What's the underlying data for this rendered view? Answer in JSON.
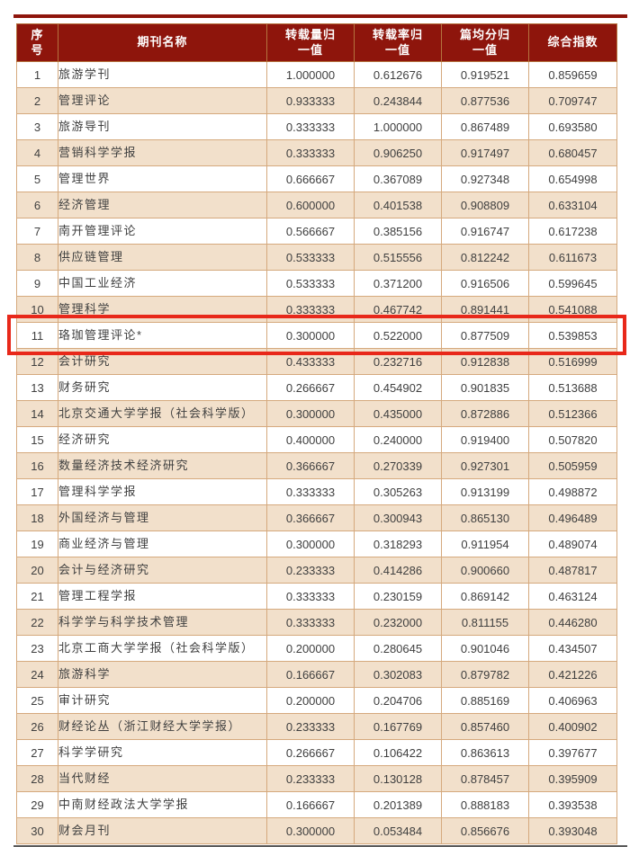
{
  "colors": {
    "header_bg": "#8e150c",
    "header_border": "#b5733f",
    "body_border": "#d5a97d",
    "stripe_bg": "#f2e0cb",
    "text_color": "#3f3f3f",
    "highlight": "#e8281a",
    "rule_bottom": "#5a5a5a"
  },
  "table": {
    "columns": [
      {
        "key": "rank",
        "label": "序\n号"
      },
      {
        "key": "name",
        "label": "期刊名称"
      },
      {
        "key": "reprint_volume_norm",
        "label": "转载量归\n一值"
      },
      {
        "key": "reprint_rate_norm",
        "label": "转载率归\n一值"
      },
      {
        "key": "avg_score_norm",
        "label": "篇均分归\n一值"
      },
      {
        "key": "composite_index",
        "label": "综合指数"
      }
    ],
    "highlighted_rank": "11",
    "rows": [
      [
        "1",
        "旅游学刊",
        "1.000000",
        "0.612676",
        "0.919521",
        "0.859659"
      ],
      [
        "2",
        "管理评论",
        "0.933333",
        "0.243844",
        "0.877536",
        "0.709747"
      ],
      [
        "3",
        "旅游导刊",
        "0.333333",
        "1.000000",
        "0.867489",
        "0.693580"
      ],
      [
        "4",
        "营销科学学报",
        "0.333333",
        "0.906250",
        "0.917497",
        "0.680457"
      ],
      [
        "5",
        "管理世界",
        "0.666667",
        "0.367089",
        "0.927348",
        "0.654998"
      ],
      [
        "6",
        "经济管理",
        "0.600000",
        "0.401538",
        "0.908809",
        "0.633104"
      ],
      [
        "7",
        "南开管理评论",
        "0.566667",
        "0.385156",
        "0.916747",
        "0.617238"
      ],
      [
        "8",
        "供应链管理",
        "0.533333",
        "0.515556",
        "0.812242",
        "0.611673"
      ],
      [
        "9",
        "中国工业经济",
        "0.533333",
        "0.371200",
        "0.916506",
        "0.599645"
      ],
      [
        "10",
        "管理科学",
        "0.333333",
        "0.467742",
        "0.891441",
        "0.541088"
      ],
      [
        "11",
        "珞珈管理评论*",
        "0.300000",
        "0.522000",
        "0.877509",
        "0.539853"
      ],
      [
        "12",
        "会计研究",
        "0.433333",
        "0.232716",
        "0.912838",
        "0.516999"
      ],
      [
        "13",
        "财务研究",
        "0.266667",
        "0.454902",
        "0.901835",
        "0.513688"
      ],
      [
        "14",
        "北京交通大学学报（社会科学版）",
        "0.300000",
        "0.435000",
        "0.872886",
        "0.512366"
      ],
      [
        "15",
        "经济研究",
        "0.400000",
        "0.240000",
        "0.919400",
        "0.507820"
      ],
      [
        "16",
        "数量经济技术经济研究",
        "0.366667",
        "0.270339",
        "0.927301",
        "0.505959"
      ],
      [
        "17",
        "管理科学学报",
        "0.333333",
        "0.305263",
        "0.913199",
        "0.498872"
      ],
      [
        "18",
        "外国经济与管理",
        "0.366667",
        "0.300943",
        "0.865130",
        "0.496489"
      ],
      [
        "19",
        "商业经济与管理",
        "0.300000",
        "0.318293",
        "0.911954",
        "0.489074"
      ],
      [
        "20",
        "会计与经济研究",
        "0.233333",
        "0.414286",
        "0.900660",
        "0.487817"
      ],
      [
        "21",
        "管理工程学报",
        "0.333333",
        "0.230159",
        "0.869142",
        "0.463124"
      ],
      [
        "22",
        "科学学与科学技术管理",
        "0.333333",
        "0.232000",
        "0.811155",
        "0.446280"
      ],
      [
        "23",
        "北京工商大学学报（社会科学版）",
        "0.200000",
        "0.280645",
        "0.901046",
        "0.434507"
      ],
      [
        "24",
        "旅游科学",
        "0.166667",
        "0.302083",
        "0.879782",
        "0.421226"
      ],
      [
        "25",
        "审计研究",
        "0.200000",
        "0.204706",
        "0.885169",
        "0.406963"
      ],
      [
        "26",
        "财经论丛（浙江财经大学学报）",
        "0.233333",
        "0.167769",
        "0.857460",
        "0.400902"
      ],
      [
        "27",
        "科学学研究",
        "0.266667",
        "0.106422",
        "0.863613",
        "0.397677"
      ],
      [
        "28",
        "当代财经",
        "0.233333",
        "0.130128",
        "0.878457",
        "0.395909"
      ],
      [
        "29",
        "中南财经政法大学学报",
        "0.166667",
        "0.201389",
        "0.888183",
        "0.393538"
      ],
      [
        "30",
        "财会月刊",
        "0.300000",
        "0.053484",
        "0.856676",
        "0.393048"
      ]
    ]
  }
}
